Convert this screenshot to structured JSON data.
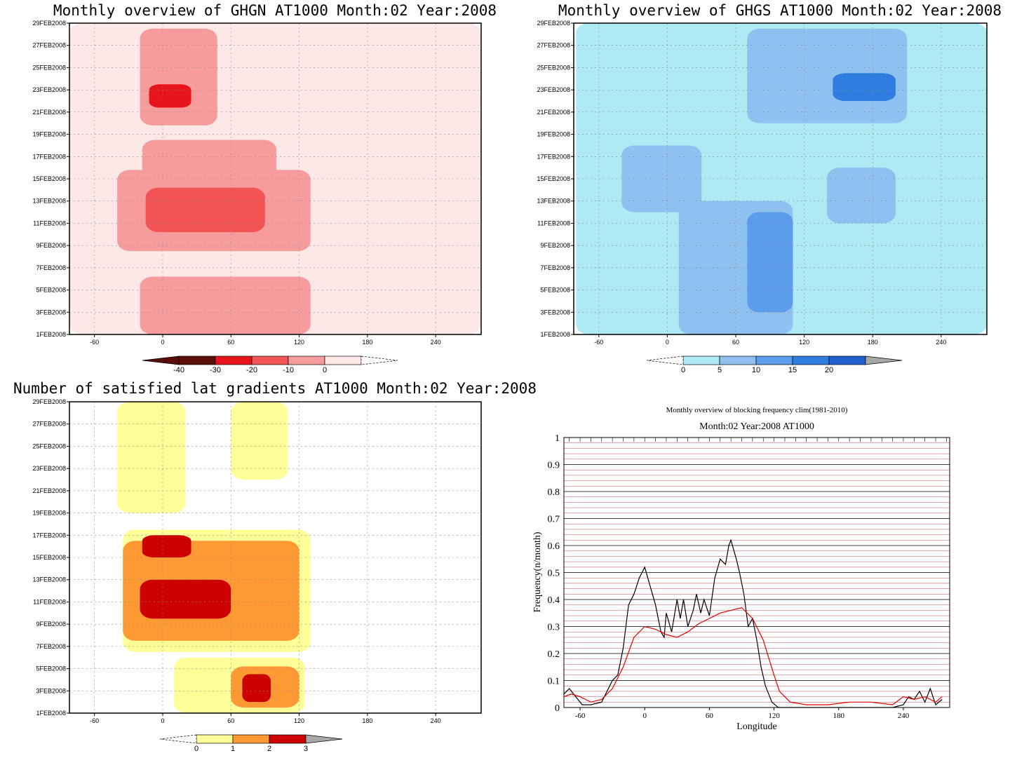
{
  "chart_data": [
    {
      "type": "heatmap",
      "title": "Monthly overview of GHGN AT1000 Month:02 Year:2008",
      "x_ticks": [
        -60,
        0,
        60,
        120,
        180,
        240
      ],
      "y_ticks": [
        "1FEB2008",
        "3FEB2008",
        "5FEB2008",
        "7FEB2008",
        "9FEB2008",
        "11FEB2008",
        "13FEB2008",
        "15FEB2008",
        "17FEB2008",
        "19FEB2008",
        "21FEB2008",
        "23FEB2008",
        "25FEB2008",
        "27FEB2008",
        "29FEB2008"
      ],
      "xlim": [
        -82,
        280
      ],
      "colorbar": {
        "labels": [
          "-40",
          "-30",
          "-20",
          "-10",
          "0"
        ],
        "colors": [
          "#5a0e0a",
          "#e8141c",
          "#f25455",
          "#f79c9c",
          "#fde8e8"
        ]
      },
      "regions": [
        {
          "level": 0,
          "color": "#fde8e8",
          "x0": -82,
          "x1": 280,
          "y0": 1,
          "y1": 29
        },
        {
          "level": -10,
          "color": "#f79c9c",
          "x0": -20,
          "x1": 48,
          "y0": 19.8,
          "y1": 28.5
        },
        {
          "level": -10,
          "color": "#f79c9c",
          "x0": -18,
          "x1": 100,
          "y0": 14.8,
          "y1": 18.5
        },
        {
          "level": -10,
          "color": "#f79c9c",
          "x0": -40,
          "x1": 130,
          "y0": 8.5,
          "y1": 15.8
        },
        {
          "level": -10,
          "color": "#f79c9c",
          "x0": -20,
          "x1": 130,
          "y0": 1,
          "y1": 6.2
        },
        {
          "level": -20,
          "color": "#f25455",
          "x0": -15,
          "x1": 90,
          "y0": 10.2,
          "y1": 14.2
        },
        {
          "level": -30,
          "color": "#e8141c",
          "x0": -12,
          "x1": 25,
          "y0": 21.4,
          "y1": 23.5
        }
      ]
    },
    {
      "type": "heatmap",
      "title": "Monthly overview of GHGS AT1000 Month:02 Year:2008",
      "x_ticks": [
        -60,
        0,
        60,
        120,
        180,
        240
      ],
      "y_ticks": [
        "1FEB2008",
        "3FEB2008",
        "5FEB2008",
        "7FEB2008",
        "9FEB2008",
        "11FEB2008",
        "13FEB2008",
        "15FEB2008",
        "17FEB2008",
        "19FEB2008",
        "21FEB2008",
        "23FEB2008",
        "25FEB2008",
        "27FEB2008",
        "29FEB2008"
      ],
      "xlim": [
        -82,
        280
      ],
      "colorbar": {
        "labels": [
          "0",
          "5",
          "10",
          "15",
          "20"
        ],
        "colors": [
          "#aeeaf4",
          "#8ec1f0",
          "#5b9ceb",
          "#2f7de1",
          "#1f5fd0"
        ]
      },
      "regions": [
        {
          "level": 0,
          "color": "#aeeaf4",
          "x0": -80,
          "x1": 280,
          "y0": 1,
          "y1": 29
        },
        {
          "level": 5,
          "color": "#8ec1f0",
          "x0": -40,
          "x1": 30,
          "y0": 12,
          "y1": 18
        },
        {
          "level": 5,
          "color": "#8ec1f0",
          "x0": 10,
          "x1": 110,
          "y0": 1,
          "y1": 13
        },
        {
          "level": 5,
          "color": "#8ec1f0",
          "x0": 70,
          "x1": 210,
          "y0": 20,
          "y1": 28.5
        },
        {
          "level": 5,
          "color": "#8ec1f0",
          "x0": 140,
          "x1": 200,
          "y0": 11,
          "y1": 16
        },
        {
          "level": 10,
          "color": "#5b9ceb",
          "x0": 70,
          "x1": 110,
          "y0": 3,
          "y1": 12
        },
        {
          "level": 15,
          "color": "#2f7de1",
          "x0": 145,
          "x1": 200,
          "y0": 22,
          "y1": 24.5
        }
      ]
    },
    {
      "type": "heatmap",
      "title": "Number of satisfied lat gradients AT1000 Month:02 Year:2008",
      "x_ticks": [
        -60,
        0,
        60,
        120,
        180,
        240
      ],
      "y_ticks": [
        "1FEB2008",
        "3FEB2008",
        "5FEB2008",
        "7FEB2008",
        "9FEB2008",
        "11FEB2008",
        "13FEB2008",
        "15FEB2008",
        "17FEB2008",
        "19FEB2008",
        "21FEB2008",
        "23FEB2008",
        "25FEB2008",
        "27FEB2008",
        "29FEB2008"
      ],
      "xlim": [
        -82,
        280
      ],
      "colorbar": {
        "labels": [
          "0",
          "1",
          "2",
          "3"
        ],
        "colors": [
          "#ffff99",
          "#ff9933",
          "#cc0000"
        ]
      },
      "regions": [
        {
          "level": 0,
          "color": "#ffff99",
          "x0": -40,
          "x1": 20,
          "y0": 19,
          "y1": 29
        },
        {
          "level": 0,
          "color": "#ffff99",
          "x0": 60,
          "x1": 110,
          "y0": 22,
          "y1": 29
        },
        {
          "level": 0,
          "color": "#ffff99",
          "x0": -35,
          "x1": 130,
          "y0": 6.5,
          "y1": 17.5
        },
        {
          "level": 0,
          "color": "#ffff99",
          "x0": 10,
          "x1": 125,
          "y0": 1,
          "y1": 6
        },
        {
          "level": 1,
          "color": "#ff9933",
          "x0": -35,
          "x1": 120,
          "y0": 7.5,
          "y1": 16.5
        },
        {
          "level": 1,
          "color": "#ff9933",
          "x0": 60,
          "x1": 120,
          "y0": 1.5,
          "y1": 5.2
        },
        {
          "level": 2,
          "color": "#cc0000",
          "x0": -20,
          "x1": 60,
          "y0": 9.5,
          "y1": 13
        },
        {
          "level": 2,
          "color": "#cc0000",
          "x0": -18,
          "x1": 25,
          "y0": 15,
          "y1": 17
        },
        {
          "level": 2,
          "color": "#cc0000",
          "x0": 70,
          "x1": 95,
          "y0": 2,
          "y1": 4.5
        }
      ]
    },
    {
      "type": "line",
      "title": "Monthly overview of blocking frequency clim(1981-2010)",
      "subtitle": "Month:02 Year:2008  AT1000",
      "xlabel": "Longitude",
      "ylabel": "Frequency(n/month)",
      "xlim": [
        -75,
        283
      ],
      "ylim": [
        0,
        1
      ],
      "x_ticks": [
        -60,
        0,
        60,
        120,
        180,
        240
      ],
      "y_ticks": [
        "0",
        "0.1",
        "0.2",
        "0.3",
        "0.4",
        "0.5",
        "0.6",
        "0.7",
        "0.8",
        "0.9",
        "1"
      ],
      "grid": true,
      "series": [
        {
          "color": "#000000",
          "x": [
            -75,
            -70,
            -62,
            -58,
            -50,
            -40,
            -30,
            -25,
            -20,
            -15,
            -10,
            -5,
            0,
            5,
            10,
            15,
            18,
            20,
            25,
            30,
            33,
            36,
            40,
            45,
            48,
            52,
            55,
            60,
            65,
            70,
            75,
            78,
            80,
            85,
            88,
            92,
            96,
            100,
            104,
            108,
            112,
            118,
            124,
            130,
            135,
            140,
            150,
            200,
            230,
            240,
            245,
            250,
            255,
            260,
            265,
            270,
            276
          ],
          "y": [
            0.05,
            0.07,
            0.03,
            0.01,
            0.01,
            0.02,
            0.1,
            0.12,
            0.22,
            0.38,
            0.42,
            0.48,
            0.52,
            0.45,
            0.38,
            0.28,
            0.26,
            0.35,
            0.28,
            0.4,
            0.33,
            0.4,
            0.3,
            0.36,
            0.42,
            0.35,
            0.4,
            0.34,
            0.48,
            0.55,
            0.53,
            0.6,
            0.62,
            0.55,
            0.5,
            0.42,
            0.3,
            0.33,
            0.25,
            0.15,
            0.08,
            0.02,
            0.0,
            0.0,
            0.0,
            0.0,
            0.0,
            0.0,
            0.0,
            0.01,
            0.04,
            0.03,
            0.06,
            0.02,
            0.07,
            0.01,
            0.03
          ]
        },
        {
          "color": "#e00000",
          "x": [
            -75,
            -68,
            -60,
            -50,
            -40,
            -30,
            -20,
            -10,
            0,
            10,
            20,
            30,
            40,
            50,
            60,
            70,
            80,
            90,
            100,
            110,
            120,
            125,
            135,
            150,
            170,
            190,
            210,
            230,
            240,
            250,
            260,
            270,
            276
          ],
          "y": [
            0.04,
            0.05,
            0.04,
            0.02,
            0.03,
            0.07,
            0.15,
            0.26,
            0.3,
            0.29,
            0.27,
            0.26,
            0.28,
            0.31,
            0.33,
            0.35,
            0.36,
            0.37,
            0.33,
            0.25,
            0.12,
            0.06,
            0.02,
            0.01,
            0.01,
            0.02,
            0.02,
            0.01,
            0.04,
            0.03,
            0.04,
            0.02,
            0.04
          ]
        }
      ]
    }
  ]
}
